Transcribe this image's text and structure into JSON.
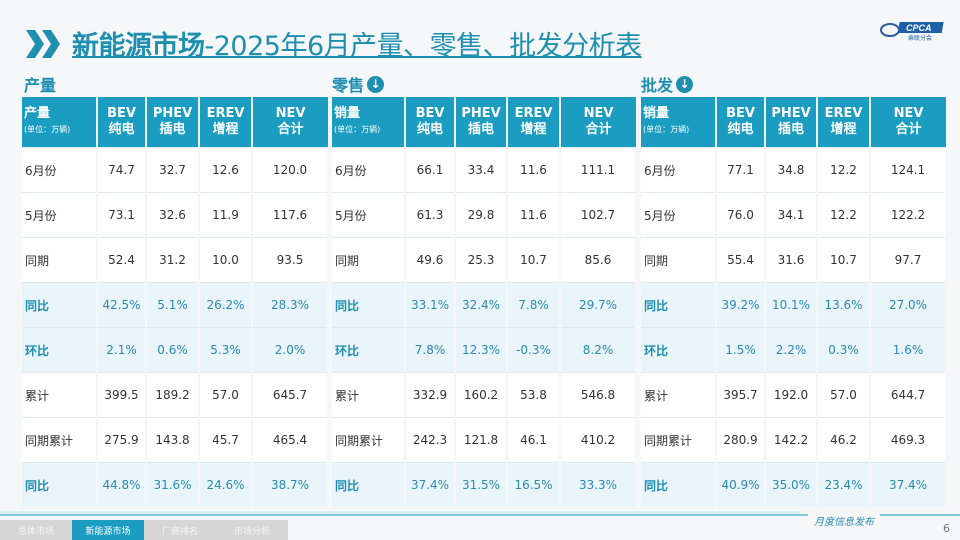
{
  "header": {
    "title_bold": "新能源市场",
    "title_rest": "-2025年6月产量、零售、批发分析表",
    "logo_text": "CPCA",
    "logo_sub": "乘联分会"
  },
  "columns": {
    "bev": "BEV",
    "bev_cn": "纯电",
    "phev": "PHEV",
    "phev_cn": "插电",
    "erev": "EREV",
    "erev_cn": "增程",
    "nev": "NEV",
    "nev_cn": "合计",
    "unit": "(单位：万辆)"
  },
  "tables": [
    {
      "section": "产量",
      "label": "产量",
      "icon": "",
      "rows": [
        [
          "6月份",
          "74.7",
          "32.7",
          "12.6",
          "120.0"
        ],
        [
          "5月份",
          "73.1",
          "32.6",
          "11.9",
          "117.6"
        ],
        [
          "同期",
          "52.4",
          "31.2",
          "10.0",
          "93.5"
        ],
        [
          "同比",
          "42.5%",
          "5.1%",
          "26.2%",
          "28.3%"
        ],
        [
          "环比",
          "2.1%",
          "0.6%",
          "5.3%",
          "2.0%"
        ],
        [
          "累计",
          "399.5",
          "189.2",
          "57.0",
          "645.7"
        ],
        [
          "同期累计",
          "275.9",
          "143.8",
          "45.7",
          "465.4"
        ],
        [
          "同比",
          "44.8%",
          "31.6%",
          "24.6%",
          "38.7%"
        ]
      ]
    },
    {
      "section": "零售",
      "label": "销量",
      "icon": "arrow-down-circle-icon",
      "rows": [
        [
          "6月份",
          "66.1",
          "33.4",
          "11.6",
          "111.1"
        ],
        [
          "5月份",
          "61.3",
          "29.8",
          "11.6",
          "102.7"
        ],
        [
          "同期",
          "49.6",
          "25.3",
          "10.7",
          "85.6"
        ],
        [
          "同比",
          "33.1%",
          "32.4%",
          "7.8%",
          "29.7%"
        ],
        [
          "环比",
          "7.8%",
          "12.3%",
          "-0.3%",
          "8.2%"
        ],
        [
          "累计",
          "332.9",
          "160.2",
          "53.8",
          "546.8"
        ],
        [
          "同期累计",
          "242.3",
          "121.8",
          "46.1",
          "410.2"
        ],
        [
          "同比",
          "37.4%",
          "31.5%",
          "16.5%",
          "33.3%"
        ]
      ]
    },
    {
      "section": "批发",
      "label": "销量",
      "icon": "arrow-down-circle-icon",
      "rows": [
        [
          "6月份",
          "77.1",
          "34.8",
          "12.2",
          "124.1"
        ],
        [
          "5月份",
          "76.0",
          "34.1",
          "12.2",
          "122.2"
        ],
        [
          "同期",
          "55.4",
          "31.6",
          "10.7",
          "97.7"
        ],
        [
          "同比",
          "39.2%",
          "10.1%",
          "13.6%",
          "27.0%"
        ],
        [
          "环比",
          "1.5%",
          "2.2%",
          "0.3%",
          "1.6%"
        ],
        [
          "累计",
          "395.7",
          "192.0",
          "57.0",
          "644.7"
        ],
        [
          "同期累计",
          "280.9",
          "142.2",
          "46.2",
          "469.3"
        ],
        [
          "同比",
          "40.9%",
          "35.0%",
          "23.4%",
          "37.4%"
        ]
      ]
    }
  ],
  "footer": {
    "tabs": [
      "总体市场",
      "新能源市场",
      "厂商排名",
      "市场分析"
    ],
    "active": 1,
    "monthly": "月度信息发布",
    "page": "6"
  },
  "colors": {
    "accent": "#1a9dc0",
    "pct_bg": "#e9f5fb"
  }
}
